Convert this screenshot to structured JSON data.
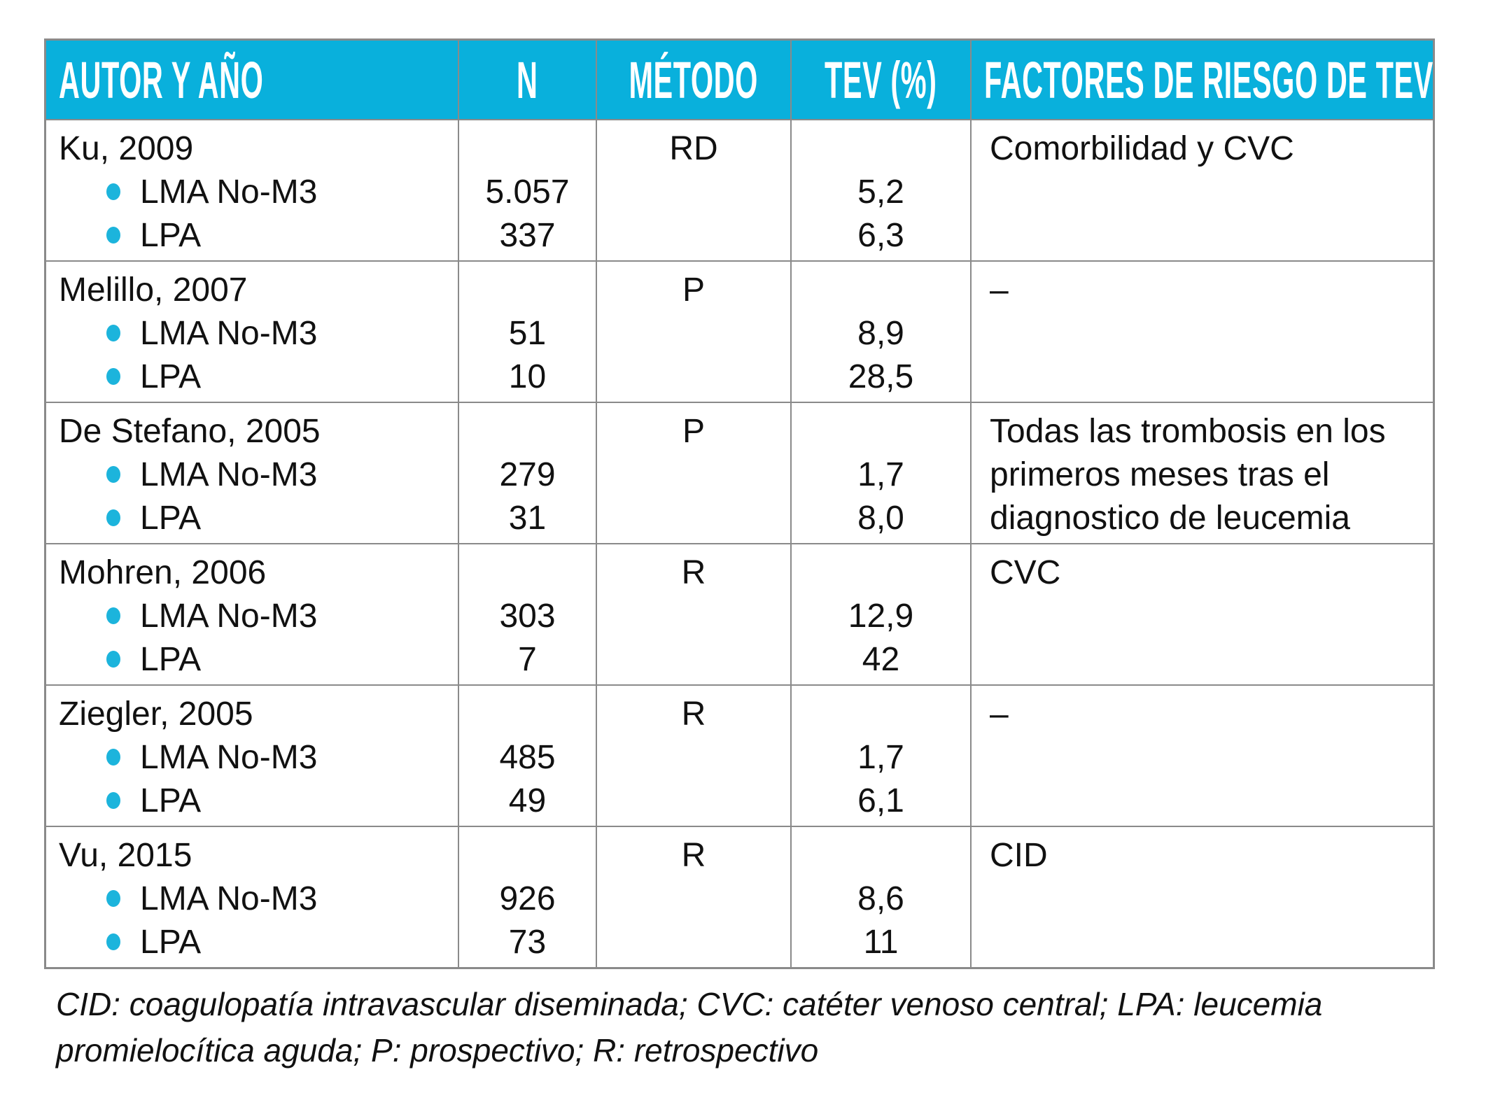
{
  "table": {
    "columns": [
      {
        "label": "AUTOR Y AÑO"
      },
      {
        "label": "N"
      },
      {
        "label": "MÉTODO"
      },
      {
        "label": "TEV (%)"
      },
      {
        "label": "FACTORES DE RIESGO DE TEV"
      }
    ],
    "rows": [
      {
        "author": "Ku, 2009",
        "items": [
          "LMA No-M3",
          "LPA"
        ],
        "n": [
          "5.057",
          "337"
        ],
        "method": "RD",
        "tev": [
          "5,2",
          "6,3"
        ],
        "factors": "Comorbilidad y CVC"
      },
      {
        "author": "Melillo, 2007",
        "items": [
          "LMA No-M3",
          "LPA"
        ],
        "n": [
          "51",
          "10"
        ],
        "method": "P",
        "tev": [
          "8,9",
          "28,5"
        ],
        "factors": "–"
      },
      {
        "author": "De Stefano, 2005",
        "items": [
          "LMA No-M3",
          "LPA"
        ],
        "n": [
          "279",
          "31"
        ],
        "method": "P",
        "tev": [
          "1,7",
          "8,0"
        ],
        "factors": "Todas las trombosis en los primeros meses tras el diagnostico de leucemia"
      },
      {
        "author": "Mohren, 2006",
        "items": [
          "LMA No-M3",
          "LPA"
        ],
        "n": [
          "303",
          "7"
        ],
        "method": "R",
        "tev": [
          "12,9",
          "42"
        ],
        "factors": "CVC"
      },
      {
        "author": "Ziegler, 2005",
        "items": [
          "LMA No-M3",
          "LPA"
        ],
        "n": [
          "485",
          "49"
        ],
        "method": "R",
        "tev": [
          "1,7",
          "6,1"
        ],
        "factors": "–"
      },
      {
        "author": "Vu, 2015",
        "items": [
          "LMA No-M3",
          "LPA"
        ],
        "n": [
          "926",
          "73"
        ],
        "method": "R",
        "tev": [
          "8,6",
          "11"
        ],
        "factors": "CID"
      }
    ],
    "footnote": "CID: coagulopatía intravascular diseminada; CVC: catéter venoso central; LPA: leucemia promielocítica aguda; P: prospectivo; R: retrospectivo"
  },
  "colors": {
    "header_bg": "#09b0dc",
    "header_text": "#ffffff",
    "bullet": "#1cb4dc",
    "border": "#8a8a8a",
    "text": "#111111"
  }
}
